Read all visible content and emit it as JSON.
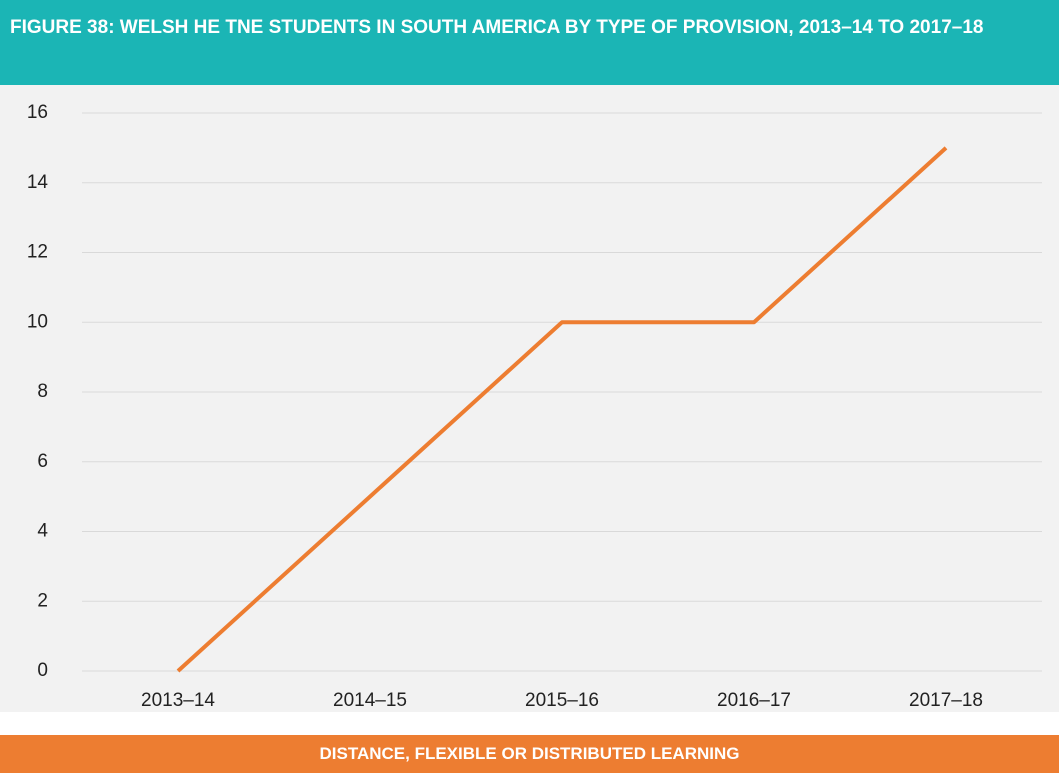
{
  "chart_data": {
    "type": "line",
    "title": "FIGURE 38: WELSH HE TNE STUDENTS IN SOUTH AMERICA BY TYPE OF PROVISION, 2013–14 TO 2017–18",
    "categories": [
      "2013–14",
      "2014–15",
      "2015–16",
      "2016–17",
      "2017–18"
    ],
    "series": [
      {
        "name": "DISTANCE, FLEXIBLE OR DISTRIBUTED LEARNING",
        "color": "#ed7d31",
        "values": [
          0,
          5,
          10,
          10,
          15
        ]
      }
    ],
    "ylim": [
      0,
      16
    ],
    "yticks": [
      0,
      2,
      4,
      6,
      8,
      10,
      12,
      14,
      16
    ],
    "grid": true
  }
}
